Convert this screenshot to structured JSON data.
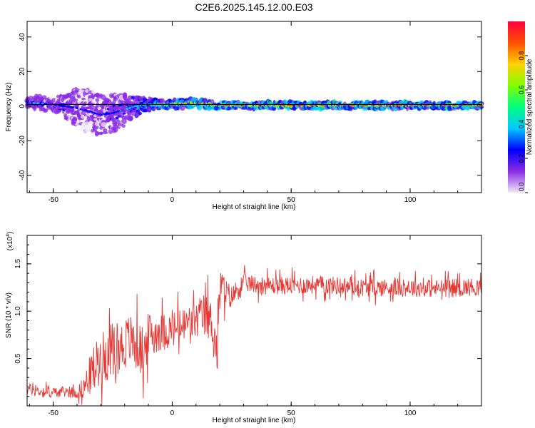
{
  "figure": {
    "title": "C2E6.2025.145.12.00.E03"
  },
  "chart_data": [
    {
      "type": "heatmap",
      "title": "C2E6.2025.145.12.00.E03",
      "xlabel": "Height of straight line (km)",
      "ylabel": "Frequency (Hz)",
      "xlim": [
        -61,
        130
      ],
      "ylim": [
        -50,
        49
      ],
      "xticks": [
        -50,
        0,
        50,
        100
      ],
      "yticks": [
        -40,
        -20,
        0,
        20,
        40
      ],
      "xtick_labels": [
        "-50",
        "0",
        "50",
        "100"
      ],
      "ytick_labels": [
        "-40",
        "-20",
        "0",
        "20",
        "40"
      ],
      "reference_line_frequency_hz": 1.0,
      "colorbar": {
        "label": "Normalized spectral amplitude",
        "range": [
          0.0,
          1.0
        ],
        "ticks": [
          0.0,
          0.2,
          0.4,
          0.6,
          0.8
        ],
        "tick_labels": [
          "0.0",
          "0.2",
          "0.4",
          "0.6",
          "0.8"
        ],
        "colormap": [
          "#f0e8f8",
          "#8a2be2",
          "#0000ff",
          "#00c8ff",
          "#00ff80",
          "#80ff00",
          "#ffd000",
          "#ff5000",
          "#ff0040"
        ]
      },
      "ridge": {
        "heights_km": [
          -60,
          -55,
          -50,
          -45,
          -40,
          -35,
          -30,
          -25,
          -20,
          -15,
          -10,
          -5,
          0,
          5,
          10,
          15,
          20,
          25,
          30,
          40,
          50,
          60,
          70,
          80,
          90,
          100,
          110,
          120,
          130
        ],
        "center_freq_hz": [
          2,
          1.5,
          1,
          0,
          -1,
          -3,
          -5,
          -4,
          -2,
          0,
          1,
          1,
          1,
          1.5,
          1.5,
          1,
          0.5,
          0.5,
          0.5,
          0.5,
          0.5,
          0.5,
          0.5,
          0.5,
          0.5,
          0.5,
          0.5,
          0.5,
          0.5
        ],
        "freq_spread_hz": [
          3,
          3,
          3,
          5,
          9,
          10,
          9,
          8,
          7,
          4,
          3,
          2,
          2,
          2,
          2,
          2,
          1.5,
          1.5,
          1.5,
          1.5,
          1.5,
          1.5,
          1.5,
          1.5,
          1.5,
          1.5,
          1.5,
          1.5,
          1.5
        ],
        "peak_amplitude": [
          0.35,
          0.35,
          0.3,
          0.3,
          0.25,
          0.25,
          0.25,
          0.3,
          0.35,
          0.45,
          0.55,
          0.7,
          0.75,
          0.8,
          0.85,
          0.85,
          0.9,
          0.9,
          0.92,
          0.92,
          0.92,
          0.92,
          0.92,
          0.9,
          0.9,
          0.9,
          0.9,
          0.9,
          0.9
        ]
      }
    },
    {
      "type": "line",
      "xlabel": "Height of straight line (km)",
      "ylabel": "SNR (10 * v/v)",
      "yscale_label": "(x10",
      "yscale_exponent": "4",
      "xlim": [
        -61,
        130
      ],
      "ylim": [
        0,
        1.8
      ],
      "xticks": [
        -50,
        0,
        50,
        100
      ],
      "yticks": [
        0.5,
        1.0,
        1.5
      ],
      "xtick_labels": [
        "-50",
        "0",
        "50",
        "100"
      ],
      "ytick_labels": [
        "0.5",
        "1.0",
        "1.5"
      ],
      "color": "#e53935",
      "series": [
        {
          "x": [
            -61,
            -55,
            -50,
            -45,
            -40,
            -37,
            -35,
            -33,
            -30,
            -27,
            -25,
            -22,
            -20,
            -18,
            -15,
            -12,
            -10,
            -5,
            0,
            5,
            10,
            13,
            15,
            17,
            19,
            20,
            22,
            25,
            28,
            30,
            35,
            40,
            50,
            60,
            70,
            80,
            90,
            100,
            110,
            120,
            130
          ],
          "values": [
            0.18,
            0.15,
            0.14,
            0.15,
            0.14,
            0.2,
            0.3,
            0.4,
            0.5,
            0.55,
            0.6,
            0.62,
            0.65,
            0.7,
            0.65,
            0.55,
            0.75,
            0.78,
            0.8,
            0.85,
            0.9,
            0.95,
            0.95,
            0.85,
            0.55,
            1.3,
            1.2,
            1.15,
            1.25,
            1.3,
            1.28,
            1.27,
            1.27,
            1.28,
            1.27,
            1.25,
            1.25,
            1.25,
            1.24,
            1.25,
            1.26
          ],
          "noise_amplitude": [
            0.08,
            0.08,
            0.07,
            0.07,
            0.08,
            0.15,
            0.25,
            0.3,
            0.35,
            0.35,
            0.35,
            0.35,
            0.35,
            0.35,
            0.35,
            0.35,
            0.3,
            0.25,
            0.25,
            0.25,
            0.25,
            0.3,
            0.3,
            0.3,
            0.3,
            0.25,
            0.2,
            0.15,
            0.15,
            0.12,
            0.12,
            0.12,
            0.12,
            0.12,
            0.12,
            0.12,
            0.12,
            0.12,
            0.12,
            0.12,
            0.12
          ]
        }
      ]
    }
  ]
}
